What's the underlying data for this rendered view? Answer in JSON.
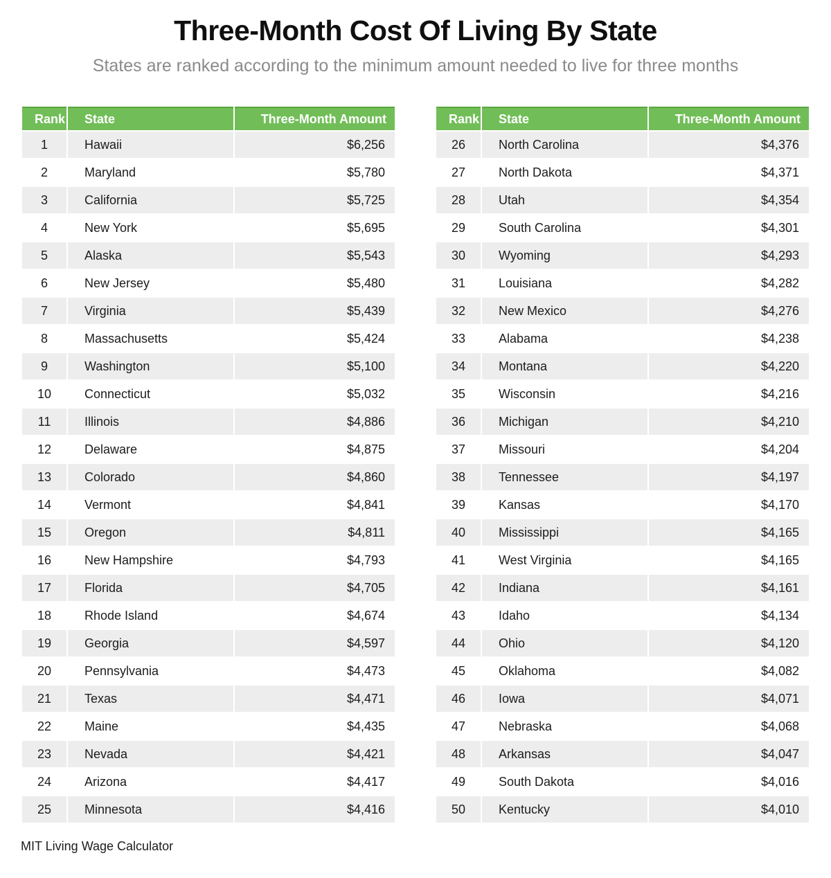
{
  "header": {
    "title": "Three-Month Cost Of Living By State",
    "subtitle": "States are ranked according to the minimum amount needed to live for three months"
  },
  "footer": {
    "source": "MIT Living Wage Calculator"
  },
  "colors": {
    "header_green": "#71be58",
    "header_green_dark_border": "#58a83f",
    "row_stripe_gray": "#ededed",
    "subtitle_gray": "#8a8a8a",
    "body_text": "#1c1c1c"
  },
  "chart_data": {
    "type": "table",
    "title": "Three-Month Cost Of Living By State",
    "subtitle": "States are ranked according to the minimum amount needed to live for three months",
    "source": "MIT Living Wage Calculator",
    "columns": [
      "Rank",
      "State",
      "Three-Month Amount"
    ],
    "amount_unit": "USD",
    "layout": "two side-by-side tables, ranks 1-25 left and 26-50 right, zebra-striped rows, green header band",
    "rows": [
      [
        1,
        "Hawaii",
        6256
      ],
      [
        2,
        "Maryland",
        5780
      ],
      [
        3,
        "California",
        5725
      ],
      [
        4,
        "New York",
        5695
      ],
      [
        5,
        "Alaska",
        5543
      ],
      [
        6,
        "New Jersey",
        5480
      ],
      [
        7,
        "Virginia",
        5439
      ],
      [
        8,
        "Massachusetts",
        5424
      ],
      [
        9,
        "Washington",
        5100
      ],
      [
        10,
        "Connecticut",
        5032
      ],
      [
        11,
        "Illinois",
        4886
      ],
      [
        12,
        "Delaware",
        4875
      ],
      [
        13,
        "Colorado",
        4860
      ],
      [
        14,
        "Vermont",
        4841
      ],
      [
        15,
        "Oregon",
        4811
      ],
      [
        16,
        "New Hampshire",
        4793
      ],
      [
        17,
        "Florida",
        4705
      ],
      [
        18,
        "Rhode Island",
        4674
      ],
      [
        19,
        "Georgia",
        4597
      ],
      [
        20,
        "Pennsylvania",
        4473
      ],
      [
        21,
        "Texas",
        4471
      ],
      [
        22,
        "Maine",
        4435
      ],
      [
        23,
        "Nevada",
        4421
      ],
      [
        24,
        "Arizona",
        4417
      ],
      [
        25,
        "Minnesota",
        4416
      ],
      [
        26,
        "North Carolina",
        4376
      ],
      [
        27,
        "North Dakota",
        4371
      ],
      [
        28,
        "Utah",
        4354
      ],
      [
        29,
        "South Carolina",
        4301
      ],
      [
        30,
        "Wyoming",
        4293
      ],
      [
        31,
        "Louisiana",
        4282
      ],
      [
        32,
        "New Mexico",
        4276
      ],
      [
        33,
        "Alabama",
        4238
      ],
      [
        34,
        "Montana",
        4220
      ],
      [
        35,
        "Wisconsin",
        4216
      ],
      [
        36,
        "Michigan",
        4210
      ],
      [
        37,
        "Missouri",
        4204
      ],
      [
        38,
        "Tennessee",
        4197
      ],
      [
        39,
        "Kansas",
        4170
      ],
      [
        40,
        "Mississippi",
        4165
      ],
      [
        41,
        "West Virginia",
        4165
      ],
      [
        42,
        "Indiana",
        4161
      ],
      [
        43,
        "Idaho",
        4134
      ],
      [
        44,
        "Ohio",
        4120
      ],
      [
        45,
        "Oklahoma",
        4082
      ],
      [
        46,
        "Iowa",
        4071
      ],
      [
        47,
        "Nebraska",
        4068
      ],
      [
        48,
        "Arkansas",
        4047
      ],
      [
        49,
        "South Dakota",
        4016
      ],
      [
        50,
        "Kentucky",
        4010
      ]
    ]
  }
}
